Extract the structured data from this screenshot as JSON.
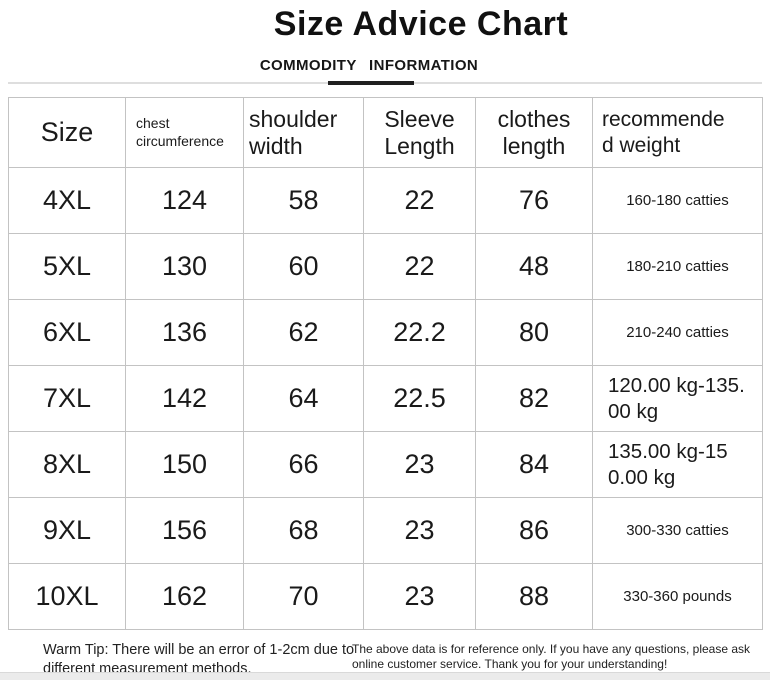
{
  "header": {
    "title": "Size Advice Chart",
    "subtitle": "COMMODITY INFORMATION"
  },
  "table": {
    "headers": [
      "Size",
      "chest\ncircumference",
      "shoulder\nwidth",
      "Sleeve\nLength",
      "clothes\nlength",
      "recommende\nd weight"
    ],
    "rows": [
      [
        "4XL",
        "124",
        "58",
        "22",
        "76",
        "160-180 catties"
      ],
      [
        "5XL",
        "130",
        "60",
        "22",
        "48",
        "180-210 catties"
      ],
      [
        "6XL",
        "136",
        "62",
        "22.2",
        "80",
        "210-240 catties"
      ],
      [
        "7XL",
        "142",
        "64",
        "22.5",
        "82",
        "120.00 kg-135.\n00 kg"
      ],
      [
        "8XL",
        "150",
        "66",
        "23",
        "84",
        "135.00 kg-15\n0.00 kg"
      ],
      [
        "9XL",
        "156",
        "68",
        "23",
        "86",
        "300-330 catties"
      ],
      [
        "10XL",
        "162",
        "70",
        "23",
        "88",
        "330-360 pounds"
      ]
    ]
  },
  "footer": {
    "warm_tip": "Warm Tip: There will be an error of 1-2cm due to different measurement methods,",
    "reference_note": "The above data is for reference only. If you have any questions, please ask online customer service. Thank you for your understanding!"
  },
  "colors": {
    "accent_underline": "#1f1f1f",
    "divider_line": "#dedede",
    "table_border": "#c3c3c3",
    "bottom_band": "#ebebeb"
  }
}
